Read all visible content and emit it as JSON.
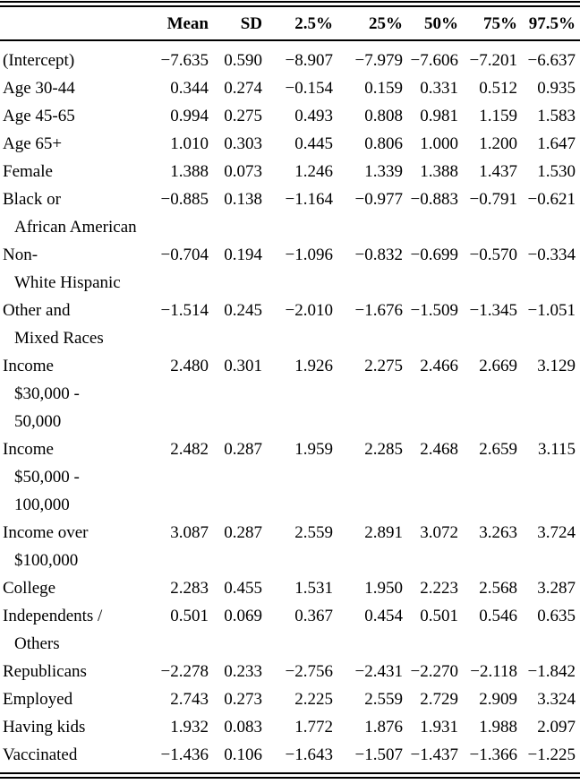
{
  "page": {
    "background": "#ffffff",
    "text_color": "#000000"
  },
  "table": {
    "header": {
      "label": "",
      "columns": [
        "Mean",
        "SD",
        "2.5%",
        "25%",
        "50%",
        "75%",
        "97.5%"
      ]
    },
    "rows": [
      {
        "label_lines": [
          "(Intercept)"
        ],
        "values": [
          "−7.635",
          "0.590",
          "−8.907",
          "−7.979",
          "−7.606",
          "−7.201",
          "−6.637"
        ]
      },
      {
        "label_lines": [
          "Age 30-44"
        ],
        "values": [
          "0.344",
          "0.274",
          "−0.154",
          "0.159",
          "0.331",
          "0.512",
          "0.935"
        ]
      },
      {
        "label_lines": [
          "Age 45-65"
        ],
        "values": [
          "0.994",
          "0.275",
          "0.493",
          "0.808",
          "0.981",
          "1.159",
          "1.583"
        ]
      },
      {
        "label_lines": [
          "Age 65+"
        ],
        "values": [
          "1.010",
          "0.303",
          "0.445",
          "0.806",
          "1.000",
          "1.200",
          "1.647"
        ]
      },
      {
        "label_lines": [
          "Female"
        ],
        "values": [
          "1.388",
          "0.073",
          "1.246",
          "1.339",
          "1.388",
          "1.437",
          "1.530"
        ]
      },
      {
        "label_lines": [
          "Black or",
          "African American"
        ],
        "values": [
          "−0.885",
          "0.138",
          "−1.164",
          "−0.977",
          "−0.883",
          "−0.791",
          "−0.621"
        ]
      },
      {
        "label_lines": [
          "Non-",
          "White Hispanic"
        ],
        "values": [
          "−0.704",
          "0.194",
          "−1.096",
          "−0.832",
          "−0.699",
          "−0.570",
          "−0.334"
        ]
      },
      {
        "label_lines": [
          "Other and",
          "Mixed Races"
        ],
        "values": [
          "−1.514",
          "0.245",
          "−2.010",
          "−1.676",
          "−1.509",
          "−1.345",
          "−1.051"
        ]
      },
      {
        "label_lines": [
          "Income",
          "$30,000 -",
          "50,000"
        ],
        "values": [
          "2.480",
          "0.301",
          "1.926",
          "2.275",
          "2.466",
          "2.669",
          "3.129"
        ]
      },
      {
        "label_lines": [
          "Income",
          "$50,000 -",
          "100,000"
        ],
        "values": [
          "2.482",
          "0.287",
          "1.959",
          "2.285",
          "2.468",
          "2.659",
          "3.115"
        ]
      },
      {
        "label_lines": [
          "Income over",
          "$100,000"
        ],
        "values": [
          "3.087",
          "0.287",
          "2.559",
          "2.891",
          "3.072",
          "3.263",
          "3.724"
        ]
      },
      {
        "label_lines": [
          "College"
        ],
        "values": [
          "2.283",
          "0.455",
          "1.531",
          "1.950",
          "2.223",
          "2.568",
          "3.287"
        ]
      },
      {
        "label_lines": [
          "Independents /",
          "Others"
        ],
        "values": [
          "0.501",
          "0.069",
          "0.367",
          "0.454",
          "0.501",
          "0.546",
          "0.635"
        ]
      },
      {
        "label_lines": [
          "Republicans"
        ],
        "values": [
          "−2.278",
          "0.233",
          "−2.756",
          "−2.431",
          "−2.270",
          "−2.118",
          "−1.842"
        ]
      },
      {
        "label_lines": [
          "Employed"
        ],
        "values": [
          "2.743",
          "0.273",
          "2.225",
          "2.559",
          "2.729",
          "2.909",
          "3.324"
        ]
      },
      {
        "label_lines": [
          "Having kids"
        ],
        "values": [
          "1.932",
          "0.083",
          "1.772",
          "1.876",
          "1.931",
          "1.988",
          "2.097"
        ]
      },
      {
        "label_lines": [
          "Vaccinated"
        ],
        "values": [
          "−1.436",
          "0.106",
          "−1.643",
          "−1.507",
          "−1.437",
          "−1.366",
          "−1.225"
        ]
      }
    ]
  }
}
